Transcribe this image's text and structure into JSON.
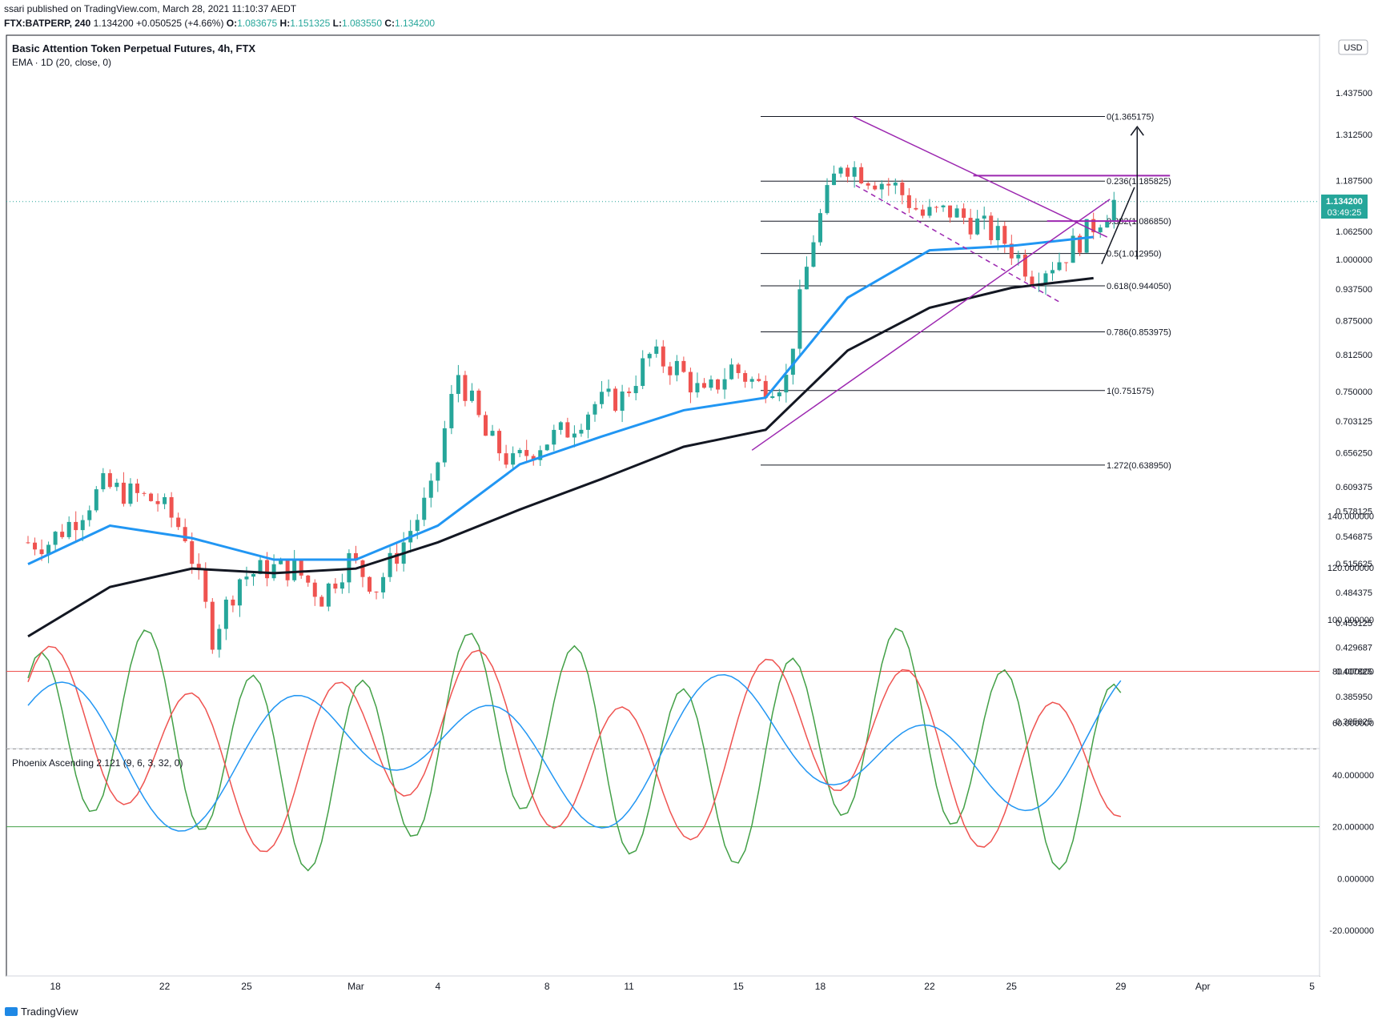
{
  "header": {
    "published": "ssari published on TradingView.com, March 28, 2021 11:10:37 AEDT",
    "symbol": "FTX:BATPERP, 240",
    "last": "1.134200",
    "change": "+0.050525 (+4.66%)",
    "open_label": "O:",
    "open": "1.083675",
    "high_label": "H:",
    "high": "1.151325",
    "low_label": "L:",
    "low": "1.083550",
    "close_label": "C:",
    "close": "1.134200"
  },
  "chart": {
    "title": "Basic Attention Token Perpetual Futures, 4h, FTX",
    "indicator": "EMA · 1D (20, close, 0)",
    "currency": "USD",
    "price_tag": "1.134200",
    "countdown": "03:49:25",
    "oscillator_title": "Phoenix Ascending 2.121 (9, 6, 3, 32, 0)",
    "brand": "TradingView",
    "colors": {
      "up": "#26a69a",
      "down": "#ef5350",
      "ema_fast": "#2196f3",
      "ema_slow": "#131722",
      "trend": "#9c27b0",
      "osc_green": "#43a047",
      "osc_red": "#ef5350",
      "osc_blue": "#2196f3"
    }
  },
  "chart_data": [
    {
      "type": "line",
      "title": "Basic Attention Token Perpetual Futures, 4h, FTX",
      "y_scale": "log",
      "ylim": [
        0.335,
        1.58
      ],
      "y_ticks": [
        "1.437500",
        "1.312500",
        "1.187500",
        "1.062500",
        "1.000000",
        "0.937500",
        "0.875000",
        "0.812500",
        "0.750000",
        "0.703125",
        "0.656250",
        "0.609375",
        "0.578125",
        "0.546875",
        "0.515625",
        "0.484375",
        "0.453125",
        "0.429687",
        "0.407825",
        "0.385950",
        "0.365625"
      ],
      "x_ticks": [
        "18",
        "22",
        "25",
        "Mar",
        "4",
        "8",
        "11",
        "15",
        "18",
        "22",
        "25",
        "29",
        "Apr",
        "5"
      ],
      "fib_levels": [
        {
          "label": "0(1.365175)",
          "value": 1.365175
        },
        {
          "label": "0.236(1.185825)",
          "value": 1.185825
        },
        {
          "label": "0.382(1.086850)",
          "value": 1.08685
        },
        {
          "label": "0.5(1.012950)",
          "value": 1.01295
        },
        {
          "label": "0.618(0.944050)",
          "value": 0.94405
        },
        {
          "label": "0.786(0.853975)",
          "value": 0.853975
        },
        {
          "label": "1(0.751575)",
          "value": 0.751575
        },
        {
          "label": "1.272(0.638950)",
          "value": 0.63895
        }
      ],
      "series": [
        {
          "name": "BATPERP close",
          "x": [
            "Feb 17",
            "Feb 18",
            "Feb 19",
            "Feb 20",
            "Feb 21",
            "Feb 22",
            "Feb 23",
            "Feb 24",
            "Feb 25",
            "Feb 26",
            "Feb 27",
            "Feb 28",
            "Mar 1",
            "Mar 2",
            "Mar 3",
            "Mar 4",
            "Mar 5",
            "Mar 6",
            "Mar 7",
            "Mar 8",
            "Mar 9",
            "Mar 10",
            "Mar 11",
            "Mar 12",
            "Mar 13",
            "Mar 14",
            "Mar 15",
            "Mar 16",
            "Mar 17",
            "Mar 18",
            "Mar 19",
            "Mar 20",
            "Mar 21",
            "Mar 22",
            "Mar 23",
            "Mar 24",
            "Mar 25",
            "Mar 26",
            "Mar 27",
            "Mar 28"
          ],
          "values": [
            0.54,
            0.57,
            0.61,
            0.6,
            0.59,
            0.55,
            0.44,
            0.5,
            0.51,
            0.51,
            0.48,
            0.52,
            0.49,
            0.54,
            0.6,
            0.78,
            0.68,
            0.64,
            0.67,
            0.69,
            0.73,
            0.74,
            0.81,
            0.79,
            0.74,
            0.79,
            0.76,
            0.77,
            1.05,
            1.24,
            1.2,
            1.17,
            1.1,
            1.11,
            1.08,
            1.04,
            0.97,
            1.0,
            1.06,
            1.134
          ]
        },
        {
          "name": "EMA 1D (20) fast",
          "x": [
            "Feb 17",
            "Feb 20",
            "Feb 23",
            "Feb 26",
            "Mar 1",
            "Mar 4",
            "Mar 7",
            "Mar 10",
            "Mar 13",
            "Mar 16",
            "Mar 19",
            "Mar 22",
            "Mar 25",
            "Mar 28"
          ],
          "values": [
            0.515,
            0.56,
            0.545,
            0.52,
            0.52,
            0.56,
            0.64,
            0.68,
            0.72,
            0.74,
            0.92,
            1.02,
            1.03,
            1.05
          ]
        },
        {
          "name": "EMA 1D (20) slow",
          "x": [
            "Feb 17",
            "Feb 20",
            "Feb 23",
            "Feb 26",
            "Mar 1",
            "Mar 4",
            "Mar 7",
            "Mar 10",
            "Mar 13",
            "Mar 16",
            "Mar 19",
            "Mar 22",
            "Mar 25",
            "Mar 28"
          ],
          "values": [
            0.44,
            0.49,
            0.51,
            0.505,
            0.51,
            0.54,
            0.58,
            0.62,
            0.665,
            0.69,
            0.82,
            0.9,
            0.94,
            0.96
          ]
        }
      ]
    },
    {
      "type": "line",
      "title": "Phoenix Ascending 2.121 (9, 6, 3, 32, 0)",
      "ylim": [
        -25,
        142
      ],
      "y_ticks": [
        "140.000000",
        "120.000000",
        "100.000000",
        "80.000000",
        "60.000000",
        "40.000000",
        "20.000000",
        "0.000000",
        "-20.000000"
      ],
      "levels": [
        {
          "value": 80,
          "color": "#ef5350"
        },
        {
          "value": 50,
          "color": "#9e9e9e"
        },
        {
          "value": 20,
          "color": "#43a047"
        }
      ]
    }
  ]
}
